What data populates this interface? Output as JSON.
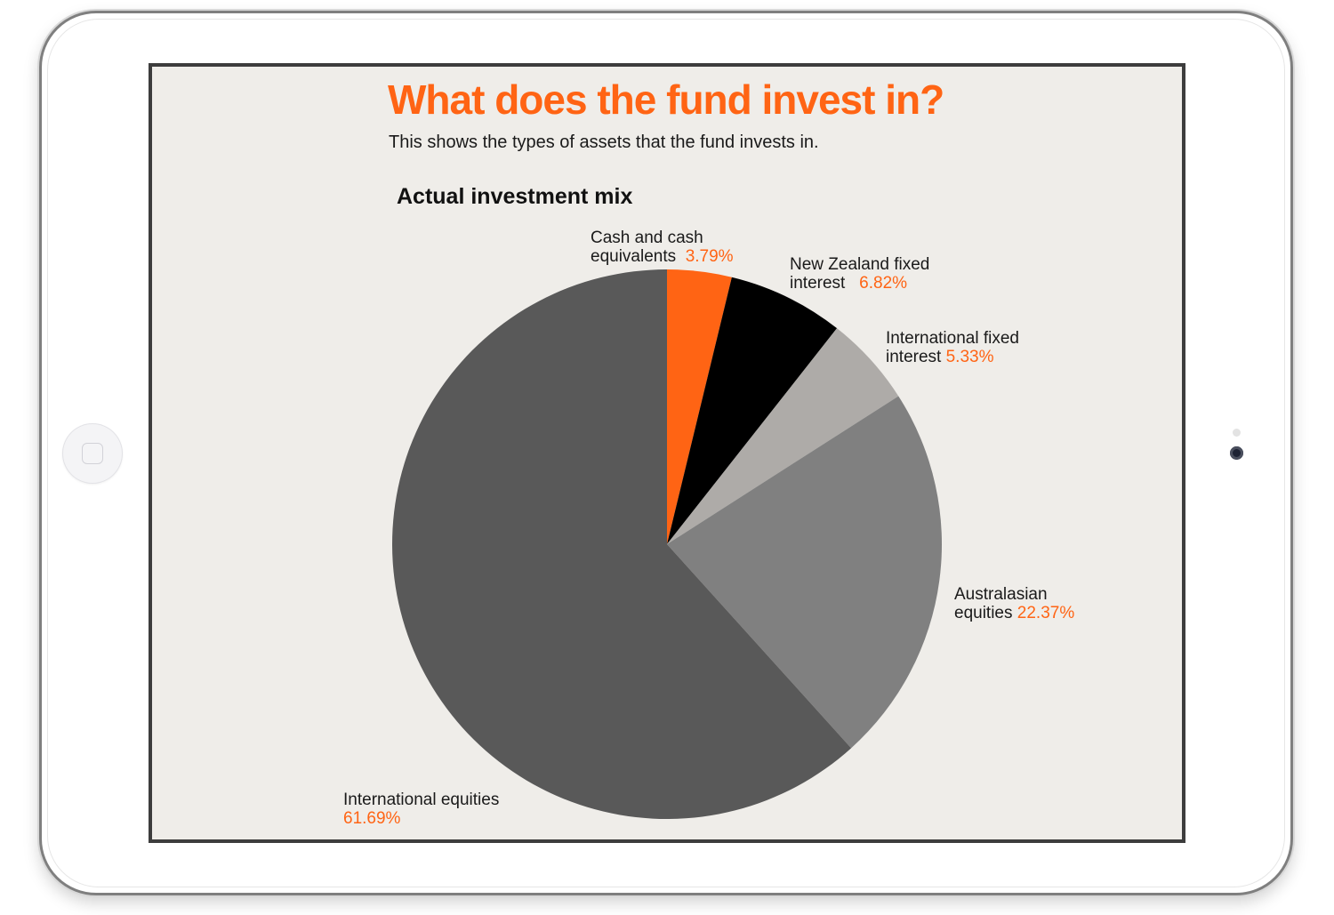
{
  "page": {
    "title": "What does the fund invest in?",
    "subtitle": "This shows the types of assets that the fund invests in."
  },
  "chart_data": {
    "type": "pie",
    "title": "Actual investment mix",
    "start_angle_deg": 0,
    "direction": "clockwise",
    "slices": [
      {
        "name_line1": "Cash and cash",
        "name_line2": "equivalents",
        "value": 3.79,
        "value_label": "3.79%",
        "color": "#ff6414"
      },
      {
        "name_line1": "New Zealand fixed",
        "name_line2": "interest",
        "value": 6.82,
        "value_label": "6.82%",
        "color": "#000000"
      },
      {
        "name_line1": "International fixed",
        "name_line2": "interest",
        "value": 5.33,
        "value_label": "5.33%",
        "color": "#aeaba8"
      },
      {
        "name_line1": "Australasian",
        "name_line2": "equities",
        "value": 22.37,
        "value_label": "22.37%",
        "color": "#808080"
      },
      {
        "name_line1": "International equities",
        "name_line2": "",
        "value": 61.69,
        "value_label": "61.69%",
        "color": "#595959"
      }
    ]
  },
  "colors": {
    "accent": "#ff6414",
    "screen_background": "#efede9"
  }
}
